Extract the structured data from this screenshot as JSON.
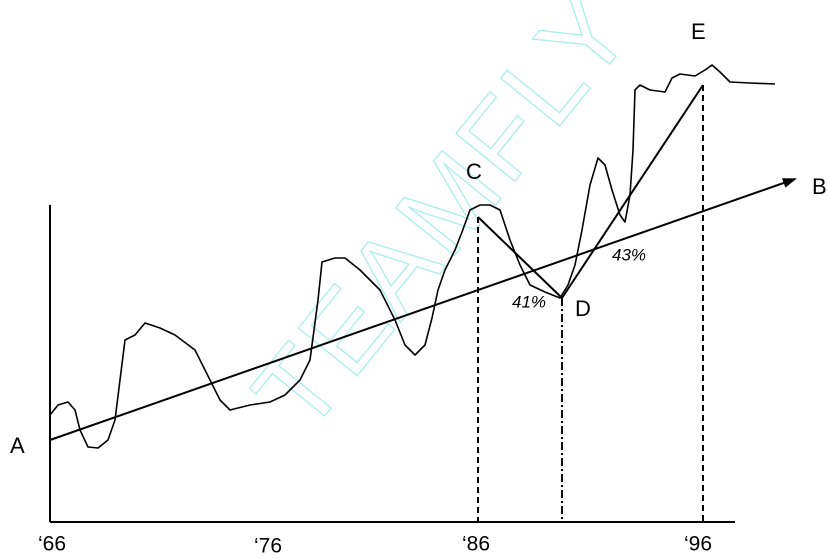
{
  "points": [
    "A",
    "B",
    "C",
    "D",
    "E"
  ],
  "percentages": [
    "41%",
    "43%"
  ],
  "x_labels": [
    "‘66",
    "‘76",
    "‘86",
    "‘96"
  ],
  "watermark": "TEAMFLY"
}
